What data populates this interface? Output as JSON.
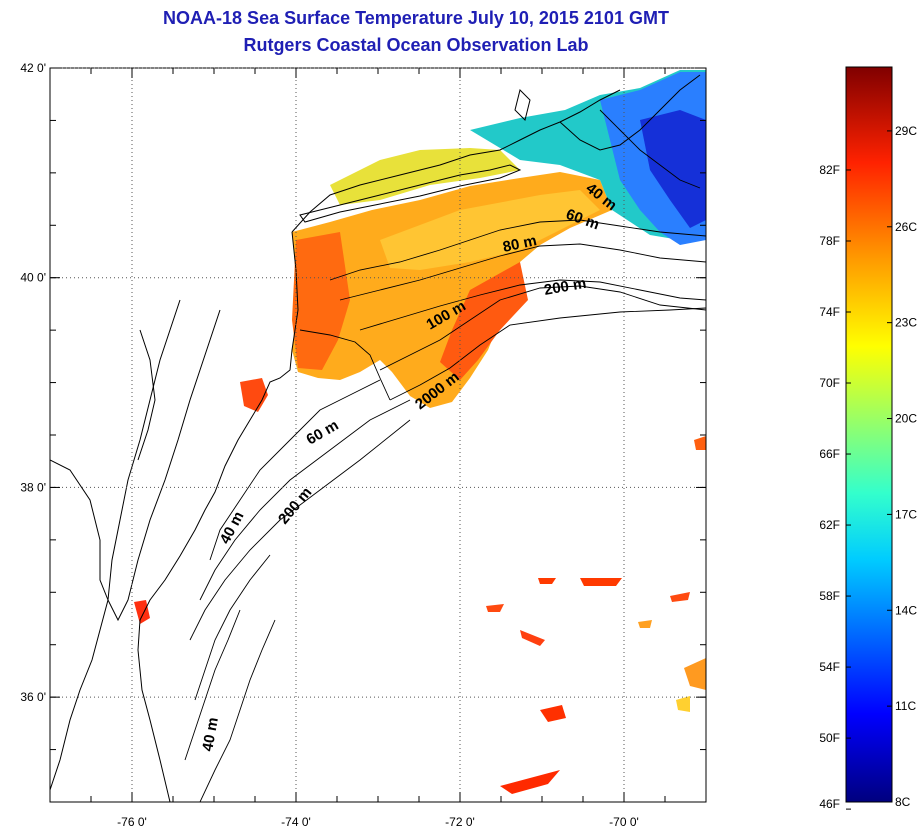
{
  "title": {
    "line1": "NOAA-18 Sea Surface Temperature July 10, 2015 2101 GMT",
    "line2": "Rutgers Coastal Ocean Observation Lab"
  },
  "map": {
    "lat_ticks": [
      {
        "label": "42 0'",
        "value": 42
      },
      {
        "label": "40 0'",
        "value": 40
      },
      {
        "label": "38 0'",
        "value": 38
      },
      {
        "label": "36 0'",
        "value": 36
      }
    ],
    "lon_ticks": [
      {
        "label": "-76 0'",
        "value": -76
      },
      {
        "label": "-74 0'",
        "value": -74
      },
      {
        "label": "-72 0'",
        "value": -72
      },
      {
        "label": "-70 0'",
        "value": -70
      }
    ],
    "lat_range": [
      35,
      42
    ],
    "lon_range": [
      -77,
      -69
    ],
    "grid": "dotted",
    "contour_labels": [
      "40 m",
      "60 m",
      "80 m",
      "100 m",
      "200 m",
      "2000 m",
      "60 m",
      "40 m",
      "200 m",
      "40 m"
    ]
  },
  "colorbar": {
    "fahrenheit_labels": [
      "82F",
      "78F",
      "74F",
      "70F",
      "66F",
      "62F",
      "58F",
      "54F",
      "50F",
      "46F"
    ],
    "celsius_labels": [
      "29C",
      "26C",
      "23C",
      "20C",
      "17C",
      "14C",
      "11C",
      "8C"
    ],
    "range_c": [
      8,
      31
    ],
    "colors": [
      "#00007f",
      "#0000ff",
      "#00bfff",
      "#00ffff",
      "#7fff7f",
      "#ffff00",
      "#ff9900",
      "#ff2a00",
      "#800000"
    ]
  }
}
